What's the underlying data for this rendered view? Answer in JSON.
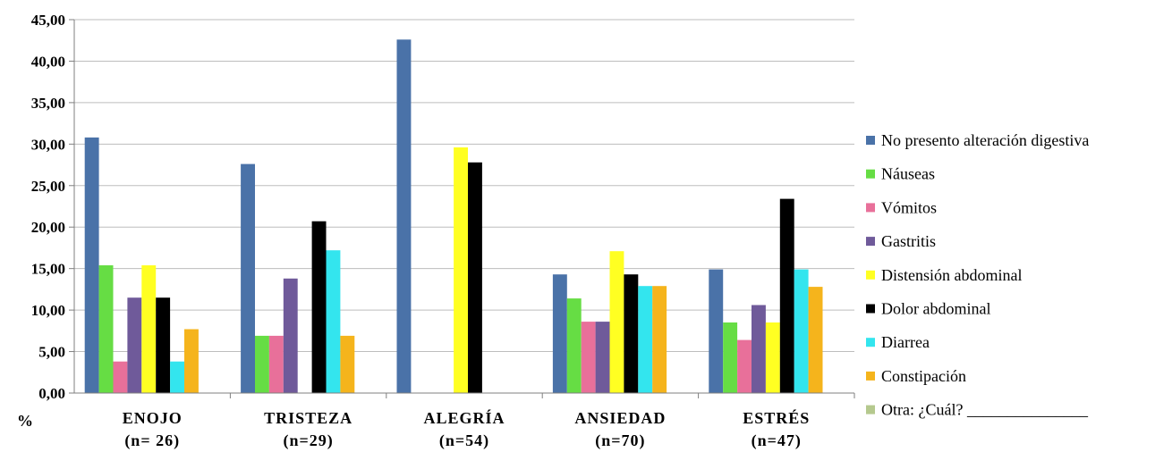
{
  "chart_data": {
    "type": "bar",
    "title": "",
    "xlabel": "",
    "ylabel": "%",
    "ylim": [
      0,
      45
    ],
    "yticks": [
      "0,00",
      "5,00",
      "10,00",
      "15,00",
      "20,00",
      "25,00",
      "30,00",
      "35,00",
      "40,00",
      "45,00"
    ],
    "grid": true,
    "legend_position": "right",
    "categories": [
      {
        "name": "ENOJO",
        "n": "(n= 26)"
      },
      {
        "name": "TRISTEZA",
        "n": "(n=29)"
      },
      {
        "name": "ALEGRÍA",
        "n": "(n=54)"
      },
      {
        "name": "ANSIEDAD",
        "n": "(n=70)"
      },
      {
        "name": "ESTRÉS",
        "n": "(n=47)"
      }
    ],
    "series": [
      {
        "name": "No presento alteración digestiva",
        "color": "#4a72a8",
        "values": [
          30.8,
          27.6,
          42.6,
          14.3,
          14.9
        ]
      },
      {
        "name": "Náuseas",
        "color": "#66dd44",
        "values": [
          15.4,
          6.9,
          0,
          11.4,
          8.5
        ]
      },
      {
        "name": "Vómitos",
        "color": "#e8709a",
        "values": [
          3.8,
          6.9,
          0,
          8.6,
          6.4
        ]
      },
      {
        "name": "Gastritis",
        "color": "#6f5a9a",
        "values": [
          11.5,
          13.8,
          0,
          8.6,
          10.6
        ]
      },
      {
        "name": "Distensión abdominal",
        "color": "#ffff22",
        "values": [
          15.4,
          0,
          29.6,
          17.1,
          8.5
        ]
      },
      {
        "name": "Dolor abdominal",
        "color": "#000000",
        "values": [
          11.5,
          20.7,
          27.8,
          14.3,
          23.4
        ]
      },
      {
        "name": "Diarrea",
        "color": "#33e5ee",
        "values": [
          3.8,
          17.2,
          0,
          12.9,
          14.9
        ]
      },
      {
        "name": "Constipación",
        "color": "#f5b41c",
        "values": [
          7.7,
          6.9,
          0,
          12.9,
          12.8
        ]
      },
      {
        "name": "Otra: ¿Cuál? _______________",
        "color": "#b5c98e",
        "values": [
          0,
          0,
          0,
          0,
          0
        ]
      }
    ]
  }
}
